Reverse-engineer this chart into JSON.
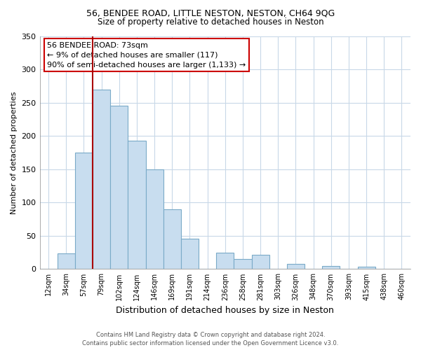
{
  "title1": "56, BENDEE ROAD, LITTLE NESTON, NESTON, CH64 9QG",
  "title2": "Size of property relative to detached houses in Neston",
  "xlabel": "Distribution of detached houses by size in Neston",
  "ylabel": "Number of detached properties",
  "bar_color": "#c8ddef",
  "bar_edge_color": "#7aaac8",
  "categories": [
    "12sqm",
    "34sqm",
    "57sqm",
    "79sqm",
    "102sqm",
    "124sqm",
    "146sqm",
    "169sqm",
    "191sqm",
    "214sqm",
    "236sqm",
    "258sqm",
    "281sqm",
    "303sqm",
    "326sqm",
    "348sqm",
    "370sqm",
    "393sqm",
    "415sqm",
    "438sqm",
    "460sqm"
  ],
  "values": [
    0,
    24,
    175,
    270,
    245,
    193,
    150,
    90,
    46,
    0,
    25,
    15,
    21,
    0,
    8,
    0,
    5,
    0,
    4,
    0,
    0
  ],
  "ylim": [
    0,
    350
  ],
  "yticks": [
    0,
    50,
    100,
    150,
    200,
    250,
    300,
    350
  ],
  "vline_color": "#aa0000",
  "annotation_title": "56 BENDEE ROAD: 73sqm",
  "annotation_line1": "← 9% of detached houses are smaller (117)",
  "annotation_line2": "90% of semi-detached houses are larger (1,133) →",
  "annotation_box_color": "#ffffff",
  "annotation_box_edge": "#cc0000",
  "footer1": "Contains HM Land Registry data © Crown copyright and database right 2024.",
  "footer2": "Contains public sector information licensed under the Open Government Licence v3.0.",
  "background_color": "#ffffff",
  "grid_color": "#c8d8e8"
}
